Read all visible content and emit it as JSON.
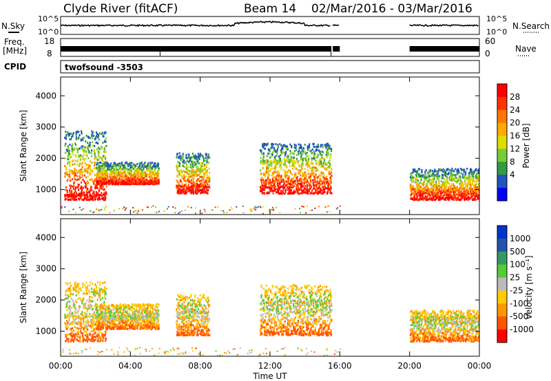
{
  "header": {
    "title": "Clyde River (fitACF)",
    "beam": "Beam 14",
    "dates": "02/Mar/2016 - 03/Mar/2016"
  },
  "top_panels": {
    "nsky_label": "N.Sky",
    "nsky_ticks": [
      "10^5",
      "10^0"
    ],
    "nsearch_label": "N.Search",
    "nsearch_ticks": [
      "10^5",
      "10^0"
    ],
    "freq_label_line1": "Freq.",
    "freq_label_line2": "[MHz]",
    "freq_ticks": [
      "18",
      "8"
    ],
    "nave_label": "Nave",
    "nave_ticks": [
      "60",
      "0"
    ],
    "cpid_label": "CPID",
    "cpid_value": "twofsound -3503"
  },
  "chart_data": [
    {
      "type": "heatmap",
      "panel": "power",
      "ylabel": "Slant Range [km]",
      "ylim": [
        200,
        4600
      ],
      "yticks": [
        "4000",
        "3000",
        "2000",
        "1000"
      ],
      "ytick_values": [
        4000,
        3000,
        2000,
        1000
      ],
      "xlim_hours": [
        0,
        24
      ],
      "colorbar": {
        "label": "Power [dB]",
        "levels": [
          "28",
          "24",
          "20",
          "16",
          "12",
          "8",
          "4"
        ],
        "colors": [
          "#ff0000",
          "#ff3300",
          "#ff7700",
          "#ffaa00",
          "#dddd00",
          "#77cc33",
          "#339944",
          "#2255bb",
          "#0000ff"
        ]
      },
      "regions": [
        {
          "t": [
            0.2,
            2.6
          ],
          "r": [
            700,
            2900
          ],
          "level": "high"
        },
        {
          "t": [
            2.0,
            5.6
          ],
          "r": [
            1200,
            1900
          ],
          "level": "mid"
        },
        {
          "t": [
            6.6,
            8.5
          ],
          "r": [
            900,
            2200
          ],
          "level": "high"
        },
        {
          "t": [
            11.4,
            15.5
          ],
          "r": [
            900,
            2500
          ],
          "level": "mid"
        },
        {
          "t": [
            20.0,
            24.0
          ],
          "r": [
            700,
            1700
          ],
          "level": "high"
        }
      ]
    },
    {
      "type": "heatmap",
      "panel": "velocity",
      "ylabel": "Slant Range [km]",
      "ylim": [
        200,
        4600
      ],
      "yticks": [
        "4000",
        "3000",
        "2000",
        "1000"
      ],
      "ytick_values": [
        4000,
        3000,
        2000,
        1000
      ],
      "xlabel": "Time UT",
      "xticks": [
        "00:00",
        "04:00",
        "08:00",
        "12:00",
        "16:00",
        "20:00",
        "00:00"
      ],
      "xtick_hours": [
        0,
        4,
        8,
        12,
        16,
        20,
        24
      ],
      "colorbar": {
        "label": "Velocity [m s⁻¹]",
        "levels": [
          "1000",
          "500",
          "100",
          "25",
          "-25",
          "-100",
          "-500",
          "-1000"
        ],
        "colors": [
          "#0033cc",
          "#2255aa",
          "#339966",
          "#55cc33",
          "#bbbbbb",
          "#ffcc00",
          "#ff9900",
          "#ff5500",
          "#ff0000"
        ]
      },
      "regions": [
        {
          "t": [
            0.2,
            2.6
          ],
          "r": [
            700,
            2600
          ],
          "level": "gray-orange"
        },
        {
          "t": [
            2.0,
            5.6
          ],
          "r": [
            1100,
            1900
          ],
          "level": "orange"
        },
        {
          "t": [
            6.6,
            8.5
          ],
          "r": [
            900,
            2200
          ],
          "level": "orange"
        },
        {
          "t": [
            11.4,
            15.5
          ],
          "r": [
            900,
            2500
          ],
          "level": "red-orange"
        },
        {
          "t": [
            20.0,
            24.0
          ],
          "r": [
            700,
            1700
          ],
          "level": "orange"
        }
      ]
    }
  ]
}
